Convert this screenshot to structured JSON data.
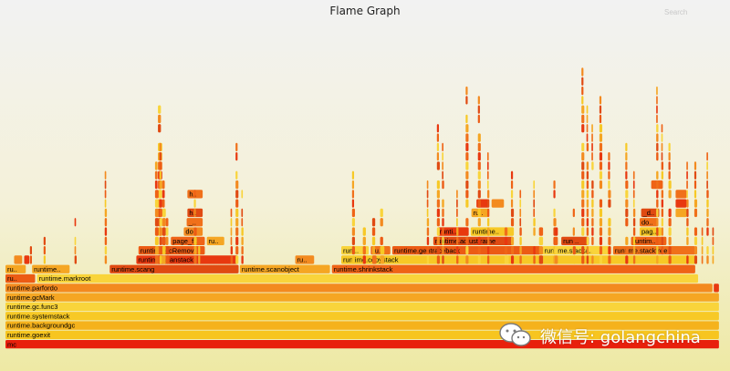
{
  "title": "Flame Graph",
  "search_label": "Search",
  "watermark_text": "微信号: golangchina",
  "colors": {
    "palette": [
      "#e8380f",
      "#f0701a",
      "#f5a623",
      "#f7c926",
      "#ec5b14",
      "#e04a12",
      "#f38a1f",
      "#f9d43b",
      "#ef6316"
    ],
    "text": "#000000"
  },
  "chart_data": {
    "type": "flame",
    "title": "Flame Graph",
    "depth_count": 34,
    "frames": [
      {
        "label": "mc",
        "start": 0.0,
        "end": 0.993,
        "depth": 0
      },
      {
        "label": "runtime.goexit",
        "start": 0.0,
        "end": 0.993,
        "depth": 1
      },
      {
        "label": "runtime.backgroundgc",
        "start": 0.0,
        "end": 0.993,
        "depth": 2
      },
      {
        "label": "runtime.systemstack",
        "start": 0.0,
        "end": 0.993,
        "depth": 3
      },
      {
        "label": "runtime.gc.func3",
        "start": 0.0,
        "end": 0.993,
        "depth": 4
      },
      {
        "label": "runtime.gcMark",
        "start": 0.0,
        "end": 0.993,
        "depth": 5
      },
      {
        "label": "runtime.parfordo",
        "start": 0.0,
        "end": 0.984,
        "depth": 6
      },
      {
        "label": "",
        "start": 0.985,
        "end": 0.993,
        "depth": 6
      },
      {
        "label": "ru..",
        "start": 0.0,
        "end": 0.042,
        "depth": 7
      },
      {
        "label": "runtime.markroot",
        "start": 0.044,
        "end": 0.964,
        "depth": 7
      },
      {
        "label": "ru..",
        "start": 0.0,
        "end": 0.029,
        "depth": 8
      },
      {
        "label": "r..",
        "start": 0.012,
        "end": 0.024,
        "depth": 9
      },
      {
        "label": "",
        "start": 0.026,
        "end": 0.034,
        "depth": 9
      },
      {
        "label": "runtime.parfordo",
        "start": 0.037,
        "end": 0.09,
        "depth": 8
      },
      {
        "label": "runtime.scang",
        "start": 0.145,
        "end": 0.325,
        "depth": 8
      },
      {
        "label": "runtime.scanstack",
        "start": 0.182,
        "end": 0.324,
        "depth": 9
      },
      {
        "label": "runtime.gcRemoveSt..",
        "start": 0.185,
        "end": 0.278,
        "depth": 10
      },
      {
        "label": "page_f..",
        "start": 0.23,
        "end": 0.278,
        "depth": 11
      },
      {
        "label": "ru..",
        "start": 0.28,
        "end": 0.305,
        "depth": 11
      },
      {
        "label": "runtime.scanobject",
        "start": 0.326,
        "end": 0.452,
        "depth": 8
      },
      {
        "label": "ru..",
        "start": 0.403,
        "end": 0.43,
        "depth": 9
      },
      {
        "label": "runtime.shrinkstack",
        "start": 0.454,
        "end": 0.96,
        "depth": 8
      },
      {
        "label": "runtime.copystack",
        "start": 0.467,
        "end": 0.96,
        "depth": 9
      },
      {
        "label": "runti..",
        "start": 0.467,
        "end": 0.506,
        "depth": 10
      },
      {
        "label": "ru..",
        "start": 0.508,
        "end": 0.536,
        "depth": 10
      },
      {
        "label": "runtime.gentraceback",
        "start": 0.538,
        "end": 0.745,
        "depth": 10
      },
      {
        "label": "runtime.stacka..",
        "start": 0.747,
        "end": 0.843,
        "depth": 10
      },
      {
        "label": "runtime.stackfree",
        "start": 0.845,
        "end": 0.96,
        "depth": 10
      },
      {
        "label": "runtime.adjustframe",
        "start": 0.595,
        "end": 0.707,
        "depth": 11
      },
      {
        "label": "runti..",
        "start": 0.601,
        "end": 0.645,
        "depth": 12
      },
      {
        "label": "runtime..",
        "start": 0.647,
        "end": 0.707,
        "depth": 12
      },
      {
        "label": "runti..",
        "start": 0.773,
        "end": 0.812,
        "depth": 11
      },
      {
        "label": "runtime..",
        "start": 0.87,
        "end": 0.92,
        "depth": 11
      },
      {
        "label": "page..",
        "start": 0.882,
        "end": 0.913,
        "depth": 12
      },
      {
        "label": "do_..",
        "start": 0.248,
        "end": 0.275,
        "depth": 12
      },
      {
        "label": "_d..",
        "start": 0.252,
        "end": 0.275,
        "depth": 13
      },
      {
        "label": "ha..",
        "start": 0.253,
        "end": 0.275,
        "depth": 14
      },
      {
        "label": "ha..",
        "start": 0.253,
        "end": 0.275,
        "depth": 16
      },
      {
        "label": "runti..",
        "start": 0.648,
        "end": 0.673,
        "depth": 14
      },
      {
        "label": "r..",
        "start": 0.676,
        "end": 0.694,
        "depth": 15
      },
      {
        "label": "r..",
        "start": 0.655,
        "end": 0.673,
        "depth": 15
      },
      {
        "label": "do_..",
        "start": 0.882,
        "end": 0.908,
        "depth": 13
      },
      {
        "label": "_d..",
        "start": 0.884,
        "end": 0.91,
        "depth": 14
      },
      {
        "label": "d..",
        "start": 0.932,
        "end": 0.948,
        "depth": 15
      },
      {
        "label": "s..",
        "start": 0.932,
        "end": 0.948,
        "depth": 14
      },
      {
        "label": "h..",
        "start": 0.898,
        "end": 0.915,
        "depth": 17
      },
      {
        "label": "h..",
        "start": 0.932,
        "end": 0.948,
        "depth": 16
      }
    ]
  }
}
